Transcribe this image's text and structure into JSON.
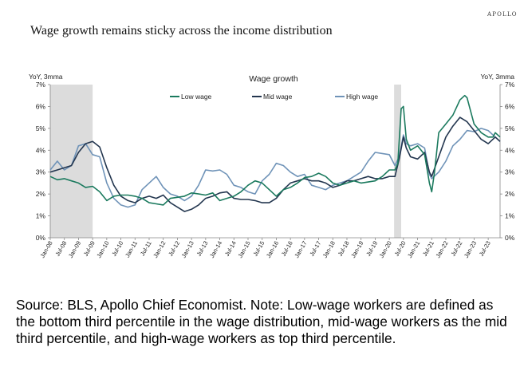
{
  "brand": "APOLLO",
  "headline": "Wage growth remains sticky across the income distribution",
  "source_note": "Source: BLS, Apollo Chief Economist. Note: Low-wage workers are defined as the bottom third percentile in the wage distribution, mid-wage workers as the mid third percentile, and high-wage workers as top third percentile.",
  "chart_data": {
    "type": "line",
    "title": "Wage growth",
    "ylabel_left": "YoY, 3mma",
    "ylabel_right": "YoY, 3mma",
    "ylim": [
      0,
      7
    ],
    "yticks": [
      "0%",
      "1%",
      "2%",
      "3%",
      "4%",
      "5%",
      "6%",
      "7%"
    ],
    "x_start": 2008.0,
    "x_end": 2023.92,
    "xticks": [
      "Jan-08",
      "Jul-08",
      "Jan-09",
      "Jul-09",
      "Jan-10",
      "Jul-10",
      "Jan-11",
      "Jul-11",
      "Jan-12",
      "Jul-12",
      "Jan-13",
      "Jul-13",
      "Jan-14",
      "Jul-14",
      "Jan-15",
      "Jul-15",
      "Jan-16",
      "Jul-16",
      "Jan-17",
      "Jul-17",
      "Jan-18",
      "Jul-18",
      "Jan-19",
      "Jul-19",
      "Jan-20",
      "Jul-20",
      "Jan-21",
      "Jul-21",
      "Jan-22",
      "Jul-22",
      "Jan-23",
      "Jul-23"
    ],
    "recessions": [
      [
        2008.0,
        2009.5
      ],
      [
        2020.17,
        2020.42
      ]
    ],
    "series": [
      {
        "name": "Low wage",
        "color": "#1b7a5e",
        "points": [
          [
            2008.0,
            2.8
          ],
          [
            2008.25,
            2.65
          ],
          [
            2008.5,
            2.7
          ],
          [
            2008.75,
            2.6
          ],
          [
            2009.0,
            2.5
          ],
          [
            2009.25,
            2.3
          ],
          [
            2009.5,
            2.35
          ],
          [
            2009.75,
            2.1
          ],
          [
            2010.0,
            1.7
          ],
          [
            2010.25,
            1.9
          ],
          [
            2010.5,
            1.95
          ],
          [
            2010.75,
            1.95
          ],
          [
            2011.0,
            1.9
          ],
          [
            2011.25,
            1.8
          ],
          [
            2011.5,
            1.6
          ],
          [
            2011.75,
            1.55
          ],
          [
            2012.0,
            1.5
          ],
          [
            2012.25,
            1.8
          ],
          [
            2012.5,
            1.85
          ],
          [
            2012.75,
            1.9
          ],
          [
            2013.0,
            2.05
          ],
          [
            2013.25,
            2.0
          ],
          [
            2013.5,
            1.95
          ],
          [
            2013.75,
            2.05
          ],
          [
            2014.0,
            1.7
          ],
          [
            2014.25,
            1.8
          ],
          [
            2014.5,
            1.9
          ],
          [
            2014.75,
            2.1
          ],
          [
            2015.0,
            2.4
          ],
          [
            2015.25,
            2.6
          ],
          [
            2015.5,
            2.5
          ],
          [
            2015.75,
            2.2
          ],
          [
            2016.0,
            1.9
          ],
          [
            2016.25,
            2.2
          ],
          [
            2016.5,
            2.3
          ],
          [
            2016.75,
            2.5
          ],
          [
            2017.0,
            2.75
          ],
          [
            2017.25,
            2.8
          ],
          [
            2017.5,
            2.95
          ],
          [
            2017.75,
            2.8
          ],
          [
            2018.0,
            2.5
          ],
          [
            2018.25,
            2.4
          ],
          [
            2018.5,
            2.5
          ],
          [
            2018.75,
            2.6
          ],
          [
            2019.0,
            2.5
          ],
          [
            2019.25,
            2.55
          ],
          [
            2019.5,
            2.6
          ],
          [
            2019.75,
            2.8
          ],
          [
            2020.0,
            3.1
          ],
          [
            2020.2,
            3.1
          ],
          [
            2020.3,
            3.4
          ],
          [
            2020.42,
            5.9
          ],
          [
            2020.5,
            6.0
          ],
          [
            2020.6,
            4.5
          ],
          [
            2020.75,
            4.0
          ],
          [
            2021.0,
            4.2
          ],
          [
            2021.25,
            3.8
          ],
          [
            2021.42,
            2.5
          ],
          [
            2021.5,
            2.1
          ],
          [
            2021.6,
            3.0
          ],
          [
            2021.75,
            4.8
          ],
          [
            2022.0,
            5.2
          ],
          [
            2022.25,
            5.6
          ],
          [
            2022.5,
            6.3
          ],
          [
            2022.67,
            6.5
          ],
          [
            2022.75,
            6.4
          ],
          [
            2023.0,
            5.2
          ],
          [
            2023.25,
            4.8
          ],
          [
            2023.5,
            4.6
          ],
          [
            2023.67,
            4.6
          ],
          [
            2023.75,
            4.8
          ],
          [
            2023.92,
            4.6
          ]
        ]
      },
      {
        "name": "Mid wage",
        "color": "#23364f",
        "points": [
          [
            2008.0,
            3.0
          ],
          [
            2008.25,
            3.1
          ],
          [
            2008.5,
            3.2
          ],
          [
            2008.75,
            3.3
          ],
          [
            2009.0,
            3.9
          ],
          [
            2009.25,
            4.3
          ],
          [
            2009.5,
            4.4
          ],
          [
            2009.75,
            4.15
          ],
          [
            2010.0,
            3.2
          ],
          [
            2010.25,
            2.4
          ],
          [
            2010.5,
            1.9
          ],
          [
            2010.75,
            1.7
          ],
          [
            2011.0,
            1.6
          ],
          [
            2011.25,
            1.8
          ],
          [
            2011.5,
            1.9
          ],
          [
            2011.75,
            1.8
          ],
          [
            2012.0,
            1.95
          ],
          [
            2012.25,
            1.6
          ],
          [
            2012.5,
            1.4
          ],
          [
            2012.75,
            1.2
          ],
          [
            2013.0,
            1.3
          ],
          [
            2013.25,
            1.5
          ],
          [
            2013.5,
            1.8
          ],
          [
            2013.75,
            1.9
          ],
          [
            2014.0,
            2.05
          ],
          [
            2014.25,
            2.1
          ],
          [
            2014.5,
            1.8
          ],
          [
            2014.75,
            1.75
          ],
          [
            2015.0,
            1.75
          ],
          [
            2015.25,
            1.7
          ],
          [
            2015.5,
            1.6
          ],
          [
            2015.75,
            1.6
          ],
          [
            2016.0,
            1.8
          ],
          [
            2016.25,
            2.2
          ],
          [
            2016.5,
            2.5
          ],
          [
            2016.75,
            2.6
          ],
          [
            2017.0,
            2.7
          ],
          [
            2017.25,
            2.6
          ],
          [
            2017.5,
            2.6
          ],
          [
            2017.75,
            2.5
          ],
          [
            2018.0,
            2.3
          ],
          [
            2018.25,
            2.4
          ],
          [
            2018.5,
            2.6
          ],
          [
            2018.75,
            2.6
          ],
          [
            2019.0,
            2.7
          ],
          [
            2019.25,
            2.8
          ],
          [
            2019.5,
            2.7
          ],
          [
            2019.75,
            2.7
          ],
          [
            2020.0,
            2.8
          ],
          [
            2020.2,
            2.8
          ],
          [
            2020.35,
            3.6
          ],
          [
            2020.5,
            4.6
          ],
          [
            2020.6,
            4.1
          ],
          [
            2020.75,
            3.7
          ],
          [
            2021.0,
            3.6
          ],
          [
            2021.25,
            3.9
          ],
          [
            2021.42,
            3.0
          ],
          [
            2021.5,
            2.8
          ],
          [
            2021.75,
            3.7
          ],
          [
            2022.0,
            4.6
          ],
          [
            2022.25,
            5.1
          ],
          [
            2022.5,
            5.5
          ],
          [
            2022.75,
            5.3
          ],
          [
            2023.0,
            4.9
          ],
          [
            2023.25,
            4.5
          ],
          [
            2023.5,
            4.3
          ],
          [
            2023.75,
            4.6
          ],
          [
            2023.92,
            4.4
          ]
        ]
      },
      {
        "name": "High wage",
        "color": "#6f93b8",
        "points": [
          [
            2008.0,
            3.1
          ],
          [
            2008.25,
            3.5
          ],
          [
            2008.5,
            3.1
          ],
          [
            2008.75,
            3.3
          ],
          [
            2009.0,
            4.2
          ],
          [
            2009.25,
            4.3
          ],
          [
            2009.5,
            3.8
          ],
          [
            2009.75,
            3.7
          ],
          [
            2010.0,
            2.5
          ],
          [
            2010.25,
            1.8
          ],
          [
            2010.5,
            1.5
          ],
          [
            2010.75,
            1.4
          ],
          [
            2011.0,
            1.5
          ],
          [
            2011.25,
            2.2
          ],
          [
            2011.5,
            2.5
          ],
          [
            2011.75,
            2.8
          ],
          [
            2012.0,
            2.3
          ],
          [
            2012.25,
            2.0
          ],
          [
            2012.5,
            1.9
          ],
          [
            2012.75,
            1.7
          ],
          [
            2013.0,
            1.9
          ],
          [
            2013.25,
            2.4
          ],
          [
            2013.5,
            3.1
          ],
          [
            2013.75,
            3.05
          ],
          [
            2014.0,
            3.1
          ],
          [
            2014.25,
            2.9
          ],
          [
            2014.5,
            2.4
          ],
          [
            2014.75,
            2.3
          ],
          [
            2015.0,
            2.1
          ],
          [
            2015.25,
            2.0
          ],
          [
            2015.5,
            2.6
          ],
          [
            2015.75,
            2.9
          ],
          [
            2016.0,
            3.4
          ],
          [
            2016.25,
            3.3
          ],
          [
            2016.5,
            3.0
          ],
          [
            2016.75,
            2.8
          ],
          [
            2017.0,
            2.9
          ],
          [
            2017.25,
            2.4
          ],
          [
            2017.5,
            2.3
          ],
          [
            2017.75,
            2.2
          ],
          [
            2018.0,
            2.4
          ],
          [
            2018.25,
            2.5
          ],
          [
            2018.5,
            2.6
          ],
          [
            2018.75,
            2.8
          ],
          [
            2019.0,
            3.0
          ],
          [
            2019.25,
            3.5
          ],
          [
            2019.5,
            3.9
          ],
          [
            2019.75,
            3.85
          ],
          [
            2020.0,
            3.8
          ],
          [
            2020.2,
            3.3
          ],
          [
            2020.35,
            3.7
          ],
          [
            2020.5,
            4.7
          ],
          [
            2020.6,
            4.3
          ],
          [
            2020.75,
            4.2
          ],
          [
            2021.0,
            4.3
          ],
          [
            2021.25,
            4.1
          ],
          [
            2021.42,
            2.9
          ],
          [
            2021.5,
            2.7
          ],
          [
            2021.75,
            3.0
          ],
          [
            2022.0,
            3.5
          ],
          [
            2022.25,
            4.2
          ],
          [
            2022.5,
            4.5
          ],
          [
            2022.75,
            4.9
          ],
          [
            2023.0,
            4.85
          ],
          [
            2023.25,
            5.0
          ],
          [
            2023.5,
            4.9
          ],
          [
            2023.75,
            4.6
          ],
          [
            2023.92,
            4.4
          ]
        ]
      }
    ]
  }
}
